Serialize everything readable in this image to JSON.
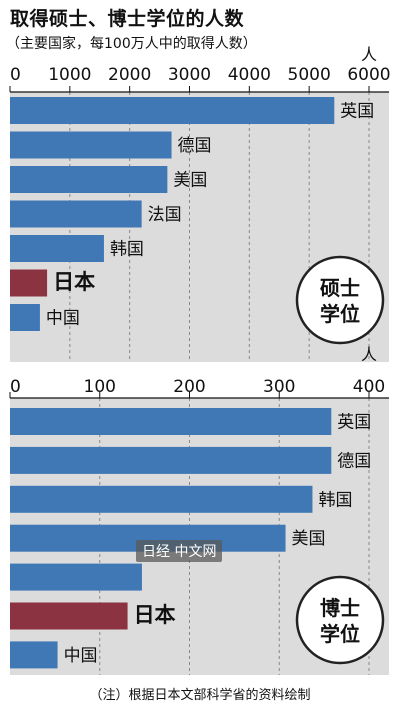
{
  "header": {
    "title": "取得硕士、博士学位的人数",
    "subtitle": "（主要国家，每100万人中的取得人数）"
  },
  "note": "（注）根据日本文部科学省的资料绘制",
  "watermark": "日经 中文网",
  "colors": {
    "panel": "#dcdcdc",
    "bar": "#3f78b5",
    "highlight": "#8b3340"
  },
  "chart_data": [
    {
      "type": "bar",
      "orientation": "horizontal",
      "badge": "硕士学位",
      "unit": "人",
      "xlim": [
        0,
        6000
      ],
      "ticks": [
        0,
        1000,
        2000,
        3000,
        4000,
        5000,
        6000
      ],
      "categories": [
        "英国",
        "德国",
        "美国",
        "法国",
        "韩国",
        "日本",
        "中国"
      ],
      "values": [
        5420,
        2700,
        2630,
        2200,
        1570,
        620,
        500
      ],
      "highlight": "日本"
    },
    {
      "type": "bar",
      "orientation": "horizontal",
      "badge": "博士学位",
      "unit": "人",
      "xlim": [
        0,
        400
      ],
      "ticks": [
        0,
        100,
        200,
        300,
        400
      ],
      "categories": [
        "英国",
        "德国",
        "韩国",
        "美国",
        "",
        "日本",
        "中国"
      ],
      "values": [
        358,
        358,
        337,
        307,
        147,
        131,
        53
      ],
      "highlight": "日本"
    }
  ]
}
